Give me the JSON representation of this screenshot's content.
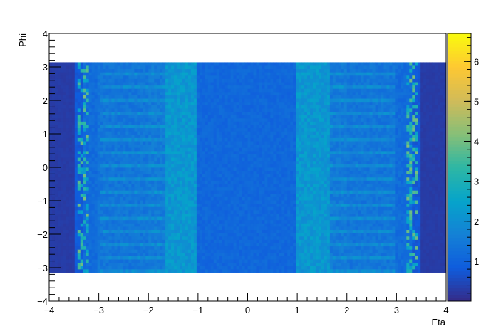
{
  "chart_data": {
    "type": "heatmap",
    "title": "",
    "xlabel": "Eta",
    "ylabel": "Phi",
    "xlim": [
      -4,
      4
    ],
    "ylim": [
      -4,
      4
    ],
    "data_phi_range": [
      -3.14,
      3.14
    ],
    "x_ticks": [
      "−4",
      "−3",
      "−2",
      "−1",
      "0",
      "1",
      "2",
      "3",
      "4"
    ],
    "y_ticks": [
      "−4",
      "−3",
      "−2",
      "−1",
      "0",
      "1",
      "2",
      "3",
      "4"
    ],
    "colorbar": {
      "min": 0,
      "max": 6.7,
      "ticks": [
        "1",
        "2",
        "3",
        "4",
        "5",
        "6"
      ],
      "colormap": "parula",
      "colors": [
        "#352a87",
        "#0f5cdd",
        "#1481d6",
        "#06a4ca",
        "#2eb7a4",
        "#87bf77",
        "#d1bb59",
        "#fec832",
        "#f9fb0e"
      ]
    },
    "eta_band_profile": [
      {
        "eta_range": [
          -4.0,
          -3.5
        ],
        "level": 0.3
      },
      {
        "eta_range": [
          -3.5,
          -3.3
        ],
        "level": 0.8
      },
      {
        "eta_range": [
          -3.3,
          -3.0
        ],
        "level": 1.2
      },
      {
        "eta_range": [
          -3.0,
          -2.0
        ],
        "level": 1.4
      },
      {
        "eta_range": [
          -2.0,
          -1.65
        ],
        "level": 1.5
      },
      {
        "eta_range": [
          -1.65,
          -1.0
        ],
        "level": 2.2
      },
      {
        "eta_range": [
          -1.0,
          1.0
        ],
        "level": 1.1
      },
      {
        "eta_range": [
          1.0,
          1.65
        ],
        "level": 2.2
      },
      {
        "eta_range": [
          1.65,
          2.0
        ],
        "level": 1.5
      },
      {
        "eta_range": [
          2.0,
          3.0
        ],
        "level": 1.4
      },
      {
        "eta_range": [
          3.0,
          3.3
        ],
        "level": 1.2
      },
      {
        "eta_range": [
          3.3,
          3.5
        ],
        "level": 0.8
      },
      {
        "eta_range": [
          3.5,
          4.0
        ],
        "level": 0.3
      }
    ],
    "hot_stripes_eta": [
      -3.3,
      3.3
    ],
    "hot_stripe_level": 3.2,
    "grid": false,
    "legend": "colorbar-right"
  }
}
